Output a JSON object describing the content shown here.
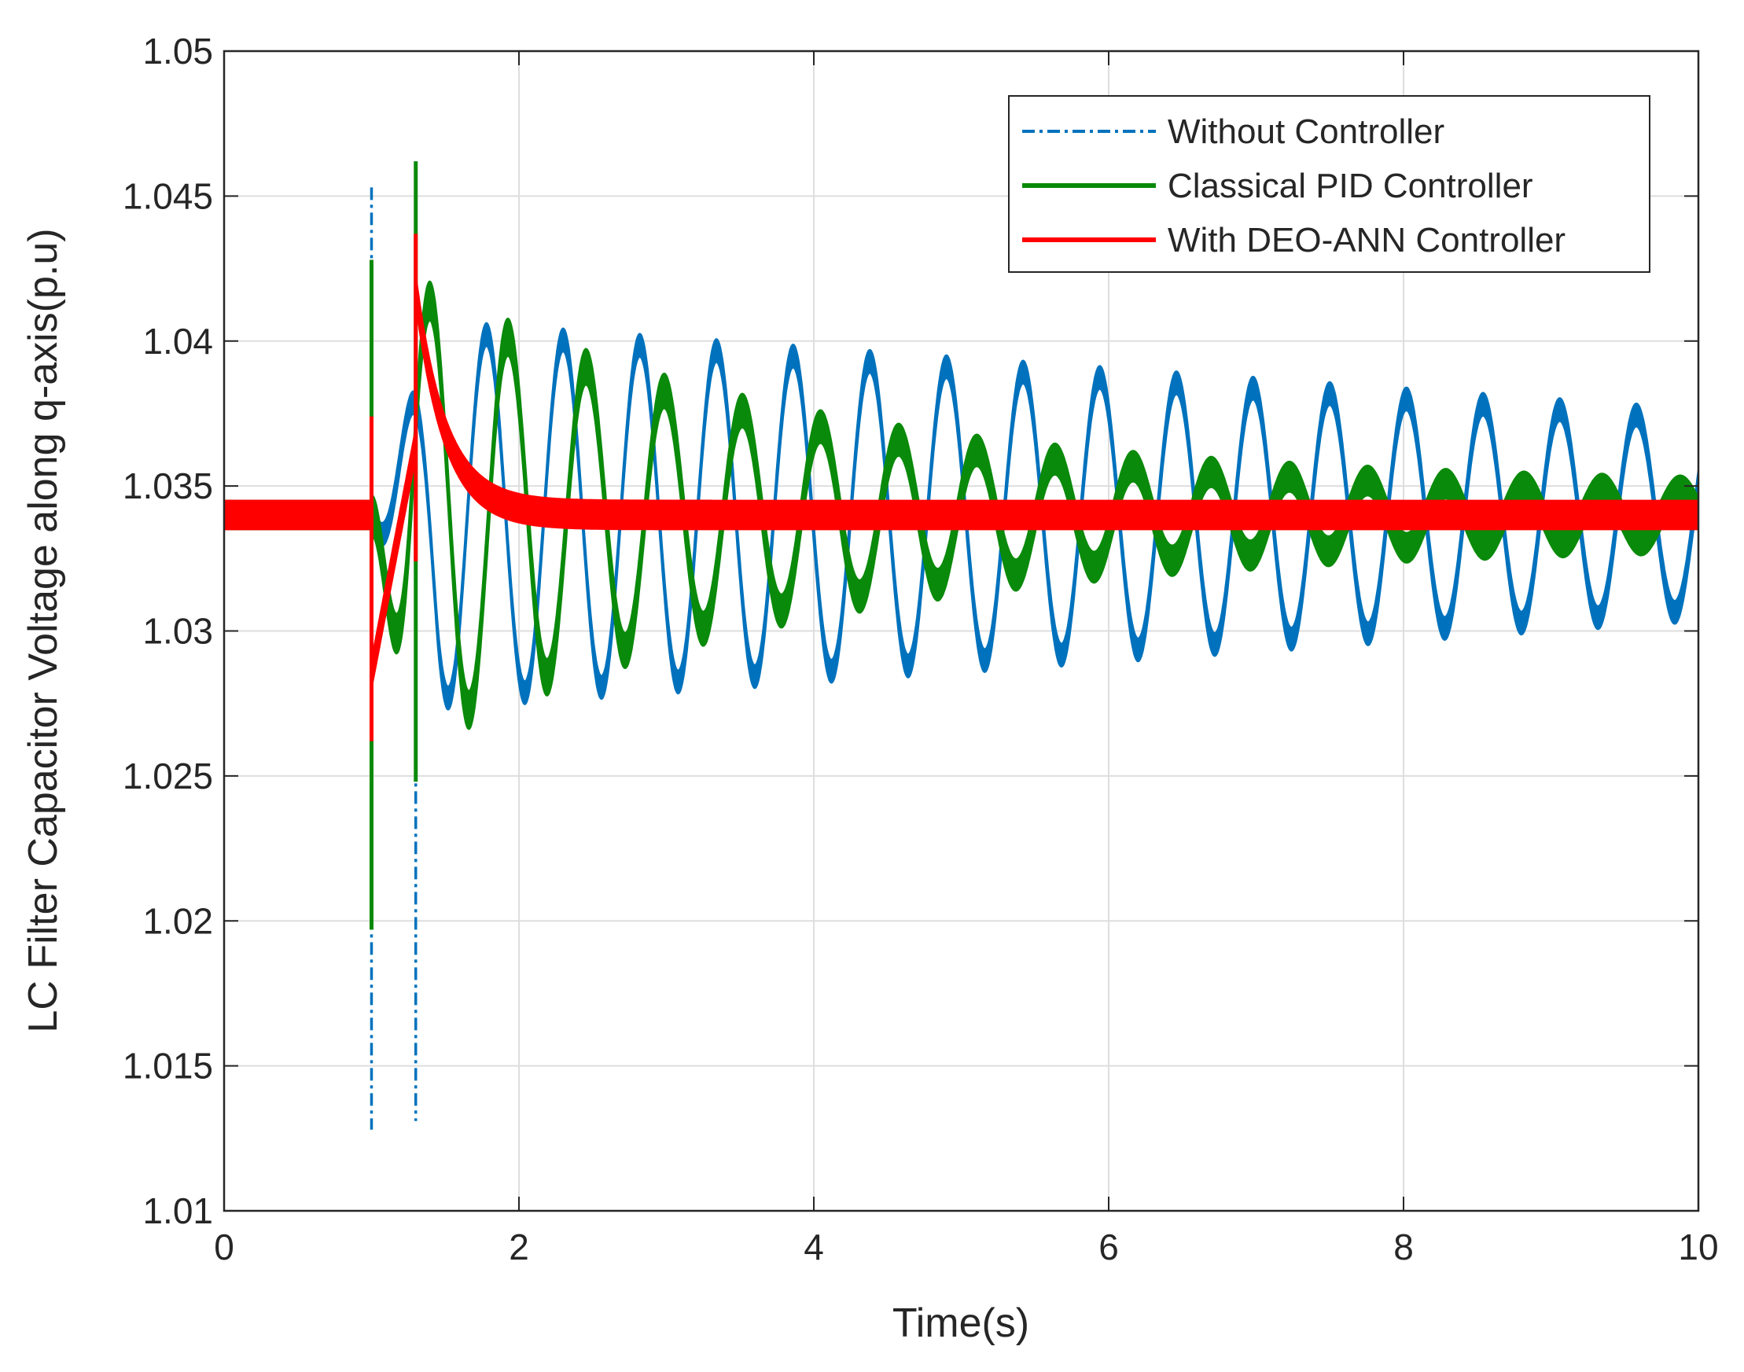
{
  "chart_data": {
    "type": "line",
    "title": "",
    "xlabel": "Time(s)",
    "ylabel": "LC Filter Capacitor Voltage along q-axis(p.u)",
    "xlim": [
      0,
      10
    ],
    "ylim": [
      1.01,
      1.05
    ],
    "grid": true,
    "legend_position": "top-right",
    "x_ticks": [
      0,
      2,
      4,
      6,
      8,
      10
    ],
    "x_tick_labels": [
      "0",
      "2",
      "4",
      "6",
      "8",
      "10"
    ],
    "y_ticks": [
      1.01,
      1.015,
      1.02,
      1.025,
      1.03,
      1.035,
      1.04,
      1.045,
      1.05
    ],
    "y_tick_labels": [
      "1.01",
      "1.015",
      "1.02",
      "1.025",
      "1.03",
      "1.035",
      "1.04",
      "1.045",
      "1.05"
    ],
    "disturbances": [
      1.0,
      1.3
    ],
    "series": [
      {
        "name": "Without Controller",
        "color": "#0072BD",
        "line_style": "dash-dot",
        "baseline": 1.034,
        "oscillation": {
          "start": 1.0,
          "period_s": 0.52,
          "amplitude_initial": 0.0065,
          "amplitude_final": 0.0033
        },
        "spikes": [
          {
            "t": 1.0,
            "min": 1.0128,
            "max": 1.0453
          },
          {
            "t": 1.3,
            "min": 1.0131,
            "max": 1.0453
          }
        ],
        "ripple": 0.0004
      },
      {
        "name": "Classical PID Controller",
        "color": "#0A8A0A",
        "line_style": "solid",
        "baseline": 1.034,
        "oscillation": {
          "start": 1.0,
          "period_s": 0.53,
          "amplitude_initial": 0.0085,
          "decay_tau_s": 2.6,
          "amplitude_floor": 0.0006
        },
        "spikes": [
          {
            "t": 1.0,
            "min": 1.0197,
            "max": 1.0428
          },
          {
            "t": 1.3,
            "min": 1.0248,
            "max": 1.0462
          }
        ],
        "ripple": 0.0005
      },
      {
        "name": "With DEO-ANN Controller",
        "color": "#FF0000",
        "line_style": "solid",
        "baseline": 1.034,
        "step_response": {
          "t": 1.3,
          "peak": 1.0418,
          "decay_tau_s": 0.2
        },
        "spikes": [
          {
            "t": 1.0,
            "min": 1.0262,
            "max": 1.0374
          },
          {
            "t": 1.3,
            "min": 1.0324,
            "max": 1.0437
          }
        ],
        "ripple": 0.0005
      }
    ]
  }
}
